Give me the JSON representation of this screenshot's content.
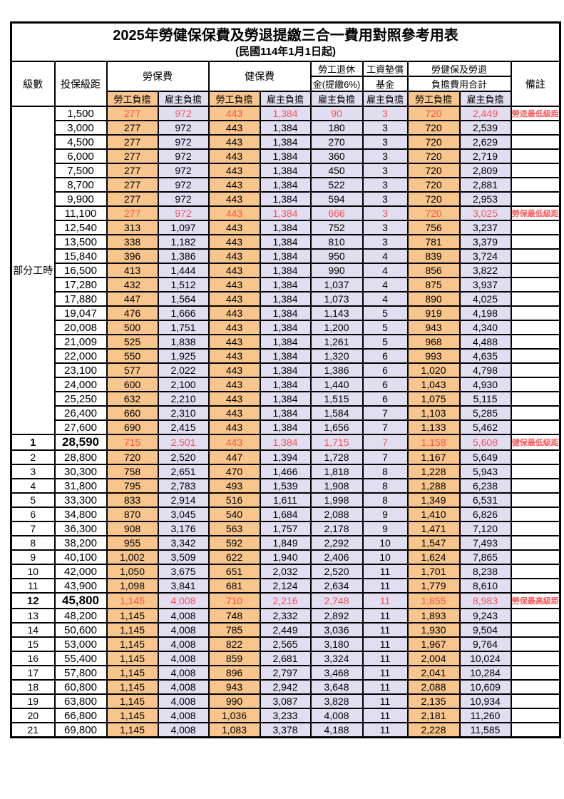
{
  "title": "2025年勞健保保費及勞退提繳三合一費用對照參考用表",
  "subtitle": "(民國114年1月1日起)",
  "colors": {
    "employee_column_bg": "#F8C58D",
    "employer_column_bg": "#E1DEF1",
    "highlight_text": "#FF5050",
    "border": "#000000"
  },
  "header": {
    "level": "級數",
    "bracket": "投保級距",
    "labor_insurance": "勞保費",
    "health_insurance": "健保費",
    "pension_line1": "勞工退休",
    "pension_line2": "金(提繳6%)",
    "wage_fund_line1": "工資墊償",
    "wage_fund_line2": "基金",
    "total_line1": "勞健保及勞退",
    "total_line2": "負擔費用合計",
    "remark": "備註",
    "employee": "勞工負擔",
    "employer": "雇主負擔"
  },
  "part_time_label": "部分工時",
  "rows": [
    {
      "level": "",
      "bracket": "1,500",
      "cells": [
        "277",
        "972",
        "443",
        "1,384",
        "90",
        "3",
        "720",
        "2,449"
      ],
      "remark": "勞退最低級距",
      "hl": true,
      "em": false
    },
    {
      "level": "",
      "bracket": "3,000",
      "cells": [
        "277",
        "972",
        "443",
        "1,384",
        "180",
        "3",
        "720",
        "2,539"
      ],
      "remark": "",
      "hl": false,
      "em": false
    },
    {
      "level": "",
      "bracket": "4,500",
      "cells": [
        "277",
        "972",
        "443",
        "1,384",
        "270",
        "3",
        "720",
        "2,629"
      ],
      "remark": "",
      "hl": false,
      "em": false
    },
    {
      "level": "",
      "bracket": "6,000",
      "cells": [
        "277",
        "972",
        "443",
        "1,384",
        "360",
        "3",
        "720",
        "2,719"
      ],
      "remark": "",
      "hl": false,
      "em": false
    },
    {
      "level": "",
      "bracket": "7,500",
      "cells": [
        "277",
        "972",
        "443",
        "1,384",
        "450",
        "3",
        "720",
        "2,809"
      ],
      "remark": "",
      "hl": false,
      "em": false
    },
    {
      "level": "",
      "bracket": "8,700",
      "cells": [
        "277",
        "972",
        "443",
        "1,384",
        "522",
        "3",
        "720",
        "2,881"
      ],
      "remark": "",
      "hl": false,
      "em": false
    },
    {
      "level": "",
      "bracket": "9,900",
      "cells": [
        "277",
        "972",
        "443",
        "1,384",
        "594",
        "3",
        "720",
        "2,953"
      ],
      "remark": "",
      "hl": false,
      "em": false
    },
    {
      "level": "",
      "bracket": "11,100",
      "cells": [
        "277",
        "972",
        "443",
        "1,384",
        "666",
        "3",
        "720",
        "3,025"
      ],
      "remark": "勞保最低級距",
      "hl": true,
      "em": false
    },
    {
      "level": "",
      "bracket": "12,540",
      "cells": [
        "313",
        "1,097",
        "443",
        "1,384",
        "752",
        "3",
        "756",
        "3,237"
      ],
      "remark": "",
      "hl": false,
      "em": false
    },
    {
      "level": "",
      "bracket": "13,500",
      "cells": [
        "338",
        "1,182",
        "443",
        "1,384",
        "810",
        "3",
        "781",
        "3,379"
      ],
      "remark": "",
      "hl": false,
      "em": false
    },
    {
      "level": "",
      "bracket": "15,840",
      "cells": [
        "396",
        "1,386",
        "443",
        "1,384",
        "950",
        "4",
        "839",
        "3,724"
      ],
      "remark": "",
      "hl": false,
      "em": false
    },
    {
      "level": "",
      "bracket": "16,500",
      "cells": [
        "413",
        "1,444",
        "443",
        "1,384",
        "990",
        "4",
        "856",
        "3,822"
      ],
      "remark": "",
      "hl": false,
      "em": false
    },
    {
      "level": "",
      "bracket": "17,280",
      "cells": [
        "432",
        "1,512",
        "443",
        "1,384",
        "1,037",
        "4",
        "875",
        "3,937"
      ],
      "remark": "",
      "hl": false,
      "em": false
    },
    {
      "level": "",
      "bracket": "17,880",
      "cells": [
        "447",
        "1,564",
        "443",
        "1,384",
        "1,073",
        "4",
        "890",
        "4,025"
      ],
      "remark": "",
      "hl": false,
      "em": false
    },
    {
      "level": "",
      "bracket": "19,047",
      "cells": [
        "476",
        "1,666",
        "443",
        "1,384",
        "1,143",
        "5",
        "919",
        "4,198"
      ],
      "remark": "",
      "hl": false,
      "em": false
    },
    {
      "level": "",
      "bracket": "20,008",
      "cells": [
        "500",
        "1,751",
        "443",
        "1,384",
        "1,200",
        "5",
        "943",
        "4,340"
      ],
      "remark": "",
      "hl": false,
      "em": false
    },
    {
      "level": "",
      "bracket": "21,009",
      "cells": [
        "525",
        "1,838",
        "443",
        "1,384",
        "1,261",
        "5",
        "968",
        "4,488"
      ],
      "remark": "",
      "hl": false,
      "em": false
    },
    {
      "level": "",
      "bracket": "22,000",
      "cells": [
        "550",
        "1,925",
        "443",
        "1,384",
        "1,320",
        "6",
        "993",
        "4,635"
      ],
      "remark": "",
      "hl": false,
      "em": false
    },
    {
      "level": "",
      "bracket": "23,100",
      "cells": [
        "577",
        "2,022",
        "443",
        "1,384",
        "1,386",
        "6",
        "1,020",
        "4,798"
      ],
      "remark": "",
      "hl": false,
      "em": false
    },
    {
      "level": "",
      "bracket": "24,000",
      "cells": [
        "600",
        "2,100",
        "443",
        "1,384",
        "1,440",
        "6",
        "1,043",
        "4,930"
      ],
      "remark": "",
      "hl": false,
      "em": false
    },
    {
      "level": "",
      "bracket": "25,250",
      "cells": [
        "632",
        "2,210",
        "443",
        "1,384",
        "1,515",
        "6",
        "1,075",
        "5,115"
      ],
      "remark": "",
      "hl": false,
      "em": false
    },
    {
      "level": "",
      "bracket": "26,400",
      "cells": [
        "660",
        "2,310",
        "443",
        "1,384",
        "1,584",
        "7",
        "1,103",
        "5,285"
      ],
      "remark": "",
      "hl": false,
      "em": false
    },
    {
      "level": "",
      "bracket": "27,600",
      "cells": [
        "690",
        "2,415",
        "443",
        "1,384",
        "1,656",
        "7",
        "1,133",
        "5,462"
      ],
      "remark": "",
      "hl": false,
      "em": false
    },
    {
      "level": "1",
      "bracket": "28,590",
      "cells": [
        "715",
        "2,501",
        "443",
        "1,384",
        "1,715",
        "7",
        "1,158",
        "5,608"
      ],
      "remark": "健保最低級距",
      "hl": true,
      "em": true
    },
    {
      "level": "2",
      "bracket": "28,800",
      "cells": [
        "720",
        "2,520",
        "447",
        "1,394",
        "1,728",
        "7",
        "1,167",
        "5,649"
      ],
      "remark": "",
      "hl": false,
      "em": false
    },
    {
      "level": "3",
      "bracket": "30,300",
      "cells": [
        "758",
        "2,651",
        "470",
        "1,466",
        "1,818",
        "8",
        "1,228",
        "5,943"
      ],
      "remark": "",
      "hl": false,
      "em": false
    },
    {
      "level": "4",
      "bracket": "31,800",
      "cells": [
        "795",
        "2,783",
        "493",
        "1,539",
        "1,908",
        "8",
        "1,288",
        "6,238"
      ],
      "remark": "",
      "hl": false,
      "em": false
    },
    {
      "level": "5",
      "bracket": "33,300",
      "cells": [
        "833",
        "2,914",
        "516",
        "1,611",
        "1,998",
        "8",
        "1,349",
        "6,531"
      ],
      "remark": "",
      "hl": false,
      "em": false
    },
    {
      "level": "6",
      "bracket": "34,800",
      "cells": [
        "870",
        "3,045",
        "540",
        "1,684",
        "2,088",
        "9",
        "1,410",
        "6,826"
      ],
      "remark": "",
      "hl": false,
      "em": false
    },
    {
      "level": "7",
      "bracket": "36,300",
      "cells": [
        "908",
        "3,176",
        "563",
        "1,757",
        "2,178",
        "9",
        "1,471",
        "7,120"
      ],
      "remark": "",
      "hl": false,
      "em": false
    },
    {
      "level": "8",
      "bracket": "38,200",
      "cells": [
        "955",
        "3,342",
        "592",
        "1,849",
        "2,292",
        "10",
        "1,547",
        "7,493"
      ],
      "remark": "",
      "hl": false,
      "em": false
    },
    {
      "level": "9",
      "bracket": "40,100",
      "cells": [
        "1,002",
        "3,509",
        "622",
        "1,940",
        "2,406",
        "10",
        "1,624",
        "7,865"
      ],
      "remark": "",
      "hl": false,
      "em": false
    },
    {
      "level": "10",
      "bracket": "42,000",
      "cells": [
        "1,050",
        "3,675",
        "651",
        "2,032",
        "2,520",
        "11",
        "1,701",
        "8,238"
      ],
      "remark": "",
      "hl": false,
      "em": false
    },
    {
      "level": "11",
      "bracket": "43,900",
      "cells": [
        "1,098",
        "3,841",
        "681",
        "2,124",
        "2,634",
        "11",
        "1,779",
        "8,610"
      ],
      "remark": "",
      "hl": false,
      "em": false
    },
    {
      "level": "12",
      "bracket": "45,800",
      "cells": [
        "1,145",
        "4,008",
        "710",
        "2,216",
        "2,748",
        "11",
        "1,855",
        "8,983"
      ],
      "remark": "勞保最高級距",
      "hl": true,
      "em": true
    },
    {
      "level": "13",
      "bracket": "48,200",
      "cells": [
        "1,145",
        "4,008",
        "748",
        "2,332",
        "2,892",
        "11",
        "1,893",
        "9,243"
      ],
      "remark": "",
      "hl": false,
      "em": false
    },
    {
      "level": "14",
      "bracket": "50,600",
      "cells": [
        "1,145",
        "4,008",
        "785",
        "2,449",
        "3,036",
        "11",
        "1,930",
        "9,504"
      ],
      "remark": "",
      "hl": false,
      "em": false
    },
    {
      "level": "15",
      "bracket": "53,000",
      "cells": [
        "1,145",
        "4,008",
        "822",
        "2,565",
        "3,180",
        "11",
        "1,967",
        "9,764"
      ],
      "remark": "",
      "hl": false,
      "em": false
    },
    {
      "level": "16",
      "bracket": "55,400",
      "cells": [
        "1,145",
        "4,008",
        "859",
        "2,681",
        "3,324",
        "11",
        "2,004",
        "10,024"
      ],
      "remark": "",
      "hl": false,
      "em": false
    },
    {
      "level": "17",
      "bracket": "57,800",
      "cells": [
        "1,145",
        "4,008",
        "896",
        "2,797",
        "3,468",
        "11",
        "2,041",
        "10,284"
      ],
      "remark": "",
      "hl": false,
      "em": false
    },
    {
      "level": "18",
      "bracket": "60,800",
      "cells": [
        "1,145",
        "4,008",
        "943",
        "2,942",
        "3,648",
        "11",
        "2,088",
        "10,609"
      ],
      "remark": "",
      "hl": false,
      "em": false
    },
    {
      "level": "19",
      "bracket": "63,800",
      "cells": [
        "1,145",
        "4,008",
        "990",
        "3,087",
        "3,828",
        "11",
        "2,135",
        "10,934"
      ],
      "remark": "",
      "hl": false,
      "em": false
    },
    {
      "level": "20",
      "bracket": "66,800",
      "cells": [
        "1,145",
        "4,008",
        "1,036",
        "3,233",
        "4,008",
        "11",
        "2,181",
        "11,260"
      ],
      "remark": "",
      "hl": false,
      "em": false
    },
    {
      "level": "21",
      "bracket": "69,800",
      "cells": [
        "1,145",
        "4,008",
        "1,083",
        "3,378",
        "4,188",
        "11",
        "2,228",
        "11,585"
      ],
      "remark": "",
      "hl": false,
      "em": false
    }
  ]
}
